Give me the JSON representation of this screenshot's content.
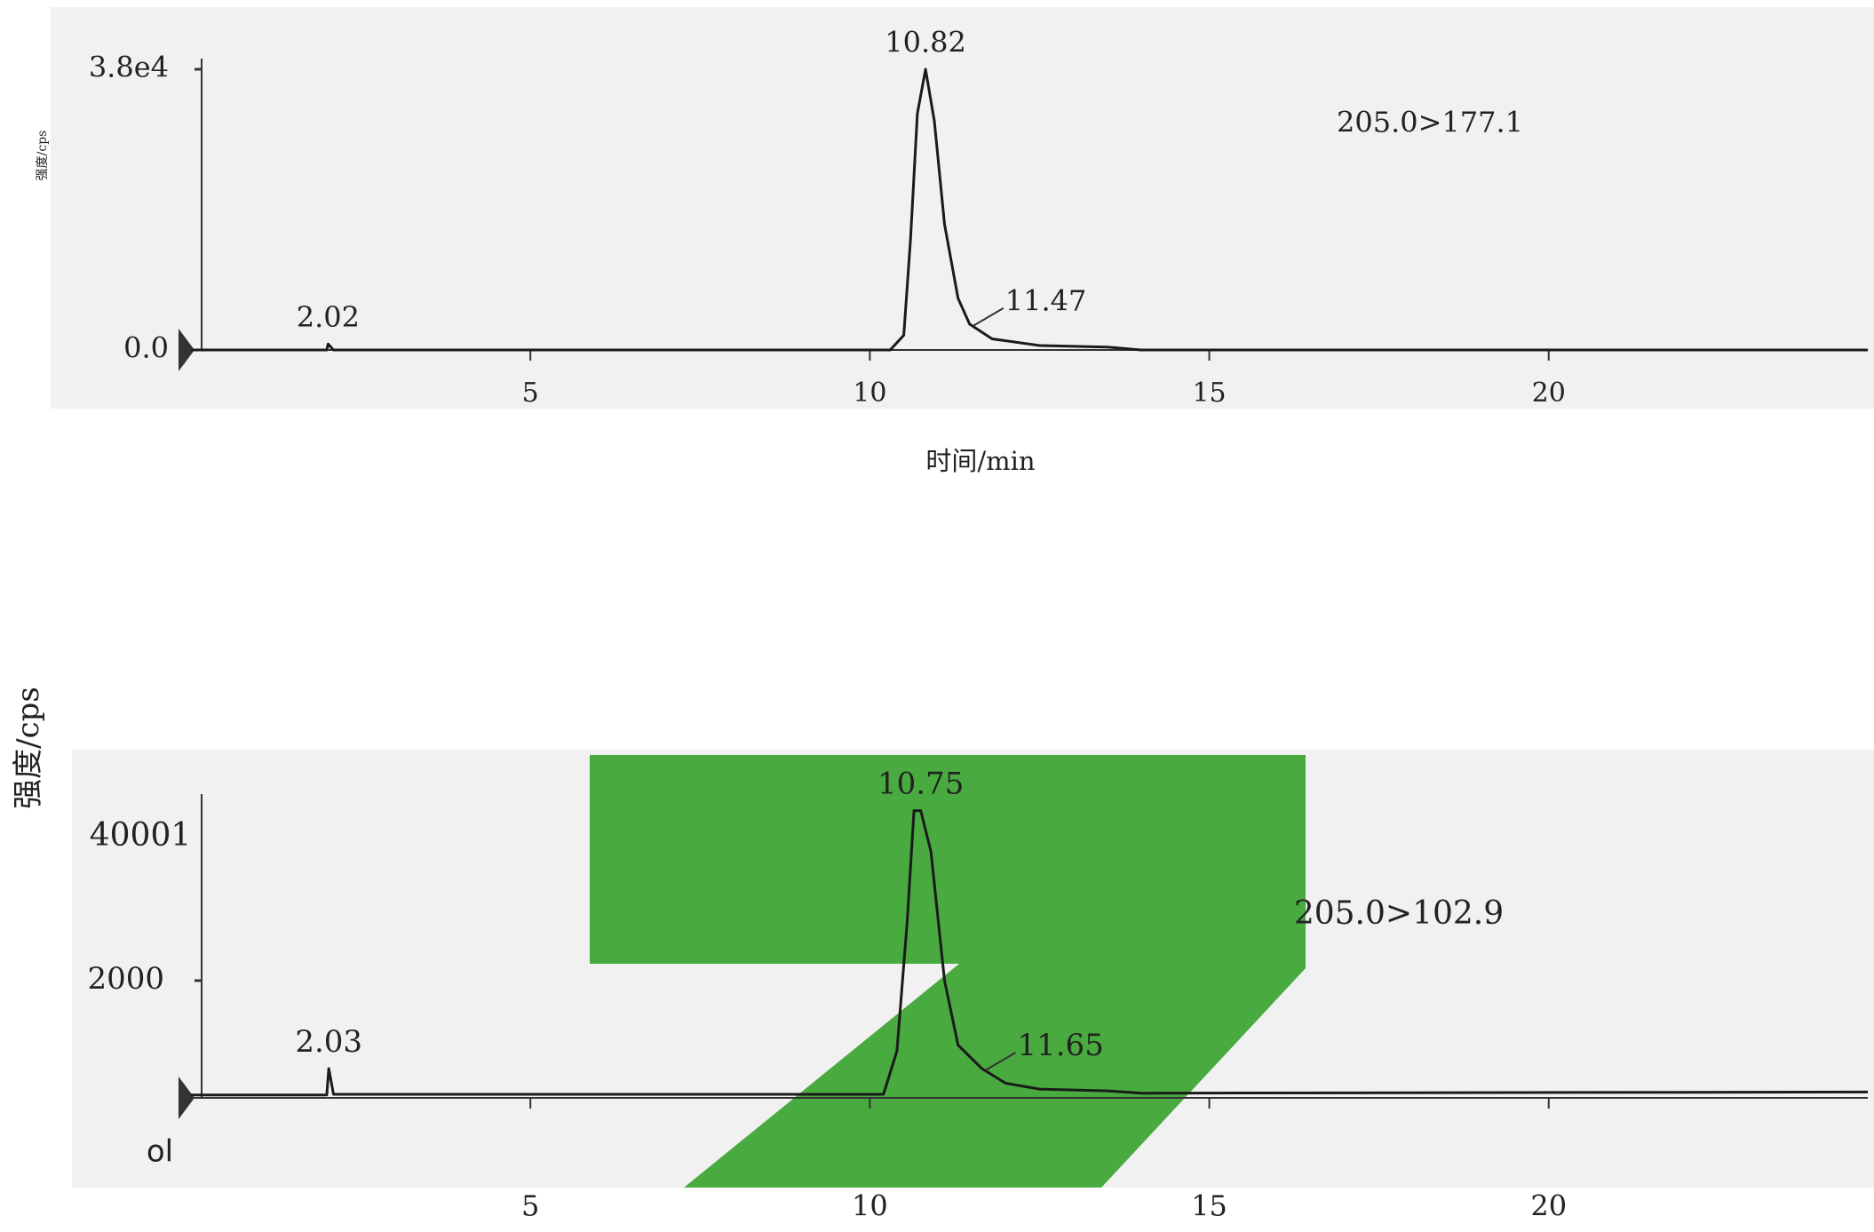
{
  "chart_data": [
    {
      "type": "line",
      "y_label": "强度/cps",
      "x_label": "时间/min",
      "transition": "205.0>177.1",
      "x": [
        0,
        2.0,
        2.02,
        2.1,
        10.3,
        10.5,
        10.6,
        10.7,
        10.82,
        10.95,
        11.1,
        11.3,
        11.47,
        11.8,
        12.5,
        13.5,
        14.0,
        24.7
      ],
      "series": [
        {
          "color": "#1a1a1a",
          "values": [
            0,
            0,
            800,
            0,
            0,
            2000,
            15000,
            32000,
            38000,
            31000,
            17000,
            7000,
            3500,
            1500,
            600,
            400,
            0,
            0
          ]
        }
      ],
      "peaks": [
        {
          "value": 2.02,
          "label": "2.02"
        },
        {
          "value": 10.82,
          "label": "10.82"
        },
        {
          "value": 11.47,
          "label": "11.47"
        }
      ],
      "xlim": [
        0,
        24.7
      ],
      "xticks": [
        5,
        10,
        15,
        20
      ],
      "ylim": [
        0,
        38000
      ],
      "yticks": [
        {
          "value": 0,
          "label": "0.0"
        },
        {
          "value": 38000,
          "label": "3.8e4"
        }
      ]
    },
    {
      "type": "line",
      "y_label": "强度/cps",
      "transition": "205.0>102.9",
      "y_top_label": "40001",
      "corner_note": "ol",
      "x": [
        0,
        2.0,
        2.03,
        2.1,
        10.2,
        10.4,
        10.55,
        10.65,
        10.75,
        10.9,
        11.1,
        11.3,
        11.65,
        12.0,
        12.5,
        13.5,
        14.0,
        24.7
      ],
      "series": [
        {
          "color": "#1a1a1a",
          "values": [
            50,
            50,
            500,
            60,
            60,
            800,
            3000,
            4900,
            4900,
            4200,
            2000,
            900,
            500,
            250,
            150,
            120,
            80,
            100
          ]
        }
      ],
      "peaks": [
        {
          "value": 2.03,
          "label": "2.03"
        },
        {
          "value": 10.75,
          "label": "10.75"
        },
        {
          "value": 11.65,
          "label": "11.65"
        }
      ],
      "xlim": [
        0,
        24.7
      ],
      "xticks": [
        5,
        10,
        15,
        20
      ],
      "ylim": [
        0,
        5000
      ],
      "yticks": [
        2000
      ]
    }
  ]
}
